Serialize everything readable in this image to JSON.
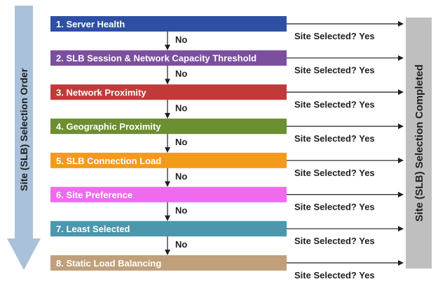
{
  "left_label": "Site (SLB) Selection Order",
  "right_label": "Site (SLB) Selection Completed",
  "no_label": "No",
  "yes_label": "Site Selected? Yes",
  "steps": [
    {
      "label": "1. Server Health",
      "color": "#2E4FA3"
    },
    {
      "label": "2. SLB Session & Network Capacity Threshold",
      "color": "#7B4F9E"
    },
    {
      "label": "3. Network Proximity",
      "color": "#C13A3A"
    },
    {
      "label": "4. Geographic Proximity",
      "color": "#6B8F31"
    },
    {
      "label": "5. SLB Connection Load",
      "color": "#F39A1D"
    },
    {
      "label": "6. Site Preference",
      "color": "#EE6BEE"
    },
    {
      "label": "7. Least Selected",
      "color": "#4A97AE"
    },
    {
      "label": "8. Static Load Balancing",
      "color": "#BFA07A"
    }
  ],
  "colors": {
    "left_arrow": "#A9C1DA",
    "right_bar": "#BFBFBF",
    "text_dark": "#1F1F1F",
    "arrow_line": "#1F1F1F"
  }
}
